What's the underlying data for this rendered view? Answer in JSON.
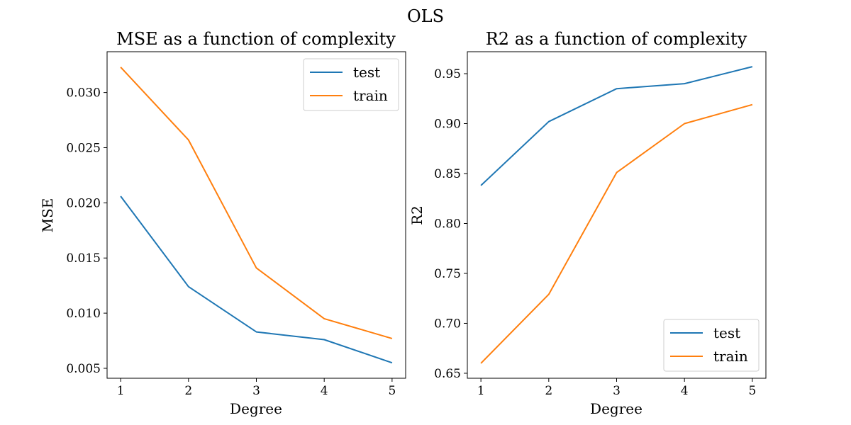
{
  "figure": {
    "suptitle": "OLS"
  },
  "colors": {
    "test": "#1f77b4",
    "train": "#ff7f0e"
  },
  "chart_data": [
    {
      "type": "line",
      "title": "MSE as a function of complexity",
      "xlabel": "Degree",
      "ylabel": "MSE",
      "x": [
        1,
        2,
        3,
        4,
        5
      ],
      "xlim": [
        0.8,
        5.2
      ],
      "ylim": [
        0.0041,
        0.0337
      ],
      "xticks": [
        1,
        2,
        3,
        4,
        5
      ],
      "xtick_labels": [
        "1",
        "2",
        "3",
        "4",
        "5"
      ],
      "yticks": [
        0.005,
        0.01,
        0.015,
        0.02,
        0.025,
        0.03
      ],
      "ytick_labels": [
        "0.005",
        "0.010",
        "0.015",
        "0.020",
        "0.025",
        "0.030"
      ],
      "grid": false,
      "legend_position": "upper right",
      "series": [
        {
          "name": "test",
          "color": "#1f77b4",
          "values": [
            0.0206,
            0.0124,
            0.0083,
            0.0076,
            0.0055
          ]
        },
        {
          "name": "train",
          "color": "#ff7f0e",
          "values": [
            0.0323,
            0.0257,
            0.0141,
            0.0095,
            0.0077
          ]
        }
      ]
    },
    {
      "type": "line",
      "title": "R2 as a function of complexity",
      "xlabel": "Degree",
      "ylabel": "R2",
      "x": [
        1,
        2,
        3,
        4,
        5
      ],
      "xlim": [
        0.8,
        5.2
      ],
      "ylim": [
        0.645,
        0.972
      ],
      "xticks": [
        1,
        2,
        3,
        4,
        5
      ],
      "xtick_labels": [
        "1",
        "2",
        "3",
        "4",
        "5"
      ],
      "yticks": [
        0.65,
        0.7,
        0.75,
        0.8,
        0.85,
        0.9,
        0.95
      ],
      "ytick_labels": [
        "0.65",
        "0.70",
        "0.75",
        "0.80",
        "0.85",
        "0.90",
        "0.95"
      ],
      "grid": false,
      "legend_position": "lower right",
      "series": [
        {
          "name": "test",
          "color": "#1f77b4",
          "values": [
            0.838,
            0.902,
            0.935,
            0.94,
            0.957
          ]
        },
        {
          "name": "train",
          "color": "#ff7f0e",
          "values": [
            0.66,
            0.729,
            0.851,
            0.9,
            0.919
          ]
        }
      ]
    }
  ]
}
